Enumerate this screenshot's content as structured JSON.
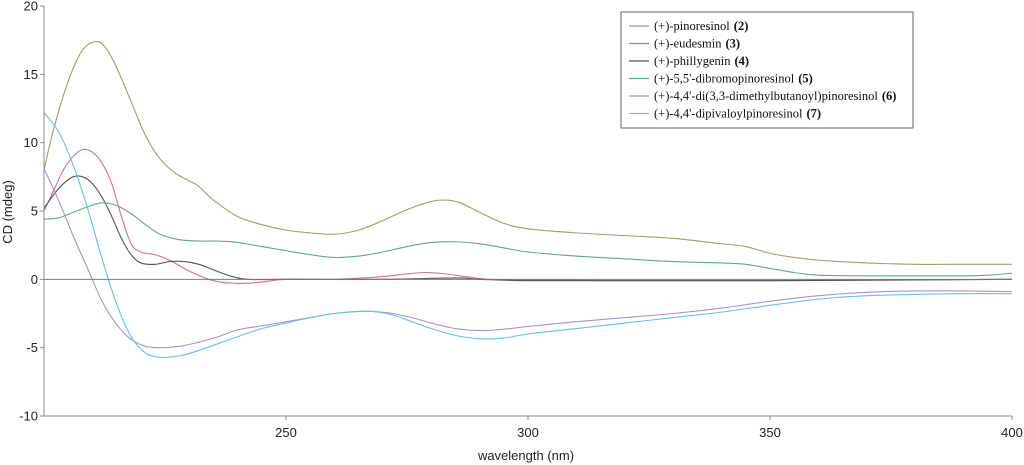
{
  "chart_data": {
    "type": "line",
    "title": "",
    "xlabel": "wavelength (nm)",
    "ylabel": "CD (mdeg)",
    "xlim": [
      200,
      400
    ],
    "ylim": [
      -10,
      20
    ],
    "xticks": [
      250,
      300,
      350,
      400
    ],
    "yticks": [
      20,
      15,
      10,
      5,
      0,
      -5,
      -10
    ],
    "legend_position": "top-right",
    "grid": false,
    "zero_line": true,
    "series": [
      {
        "name": "(+)-pinoresinol",
        "label_number": "(2)",
        "color": "#a4a060",
        "points": [
          [
            200,
            8
          ],
          [
            202,
            11
          ],
          [
            205,
            14.5
          ],
          [
            208,
            16.8
          ],
          [
            211,
            17.4
          ],
          [
            213,
            16.8
          ],
          [
            215,
            15.5
          ],
          [
            218,
            13
          ],
          [
            221,
            10.5
          ],
          [
            224,
            8.8
          ],
          [
            227,
            7.8
          ],
          [
            230,
            7.2
          ],
          [
            232,
            6.8
          ],
          [
            235,
            5.8
          ],
          [
            240,
            4.6
          ],
          [
            245,
            4.0
          ],
          [
            250,
            3.6
          ],
          [
            255,
            3.4
          ],
          [
            260,
            3.3
          ],
          [
            265,
            3.6
          ],
          [
            270,
            4.3
          ],
          [
            275,
            5.1
          ],
          [
            280,
            5.7
          ],
          [
            283,
            5.8
          ],
          [
            286,
            5.6
          ],
          [
            290,
            4.9
          ],
          [
            295,
            4.1
          ],
          [
            300,
            3.7
          ],
          [
            310,
            3.4
          ],
          [
            320,
            3.2
          ],
          [
            330,
            3.0
          ],
          [
            340,
            2.6
          ],
          [
            345,
            2.4
          ],
          [
            350,
            1.9
          ],
          [
            355,
            1.6
          ],
          [
            360,
            1.4
          ],
          [
            370,
            1.2
          ],
          [
            380,
            1.1
          ],
          [
            390,
            1.1
          ],
          [
            400,
            1.1
          ]
        ]
      },
      {
        "name": "(+)-eudesmin",
        "label_number": "(3)",
        "color": "#d87080",
        "points": [
          [
            200,
            5.0
          ],
          [
            202,
            6.5
          ],
          [
            204,
            8.0
          ],
          [
            206,
            9.0
          ],
          [
            208,
            9.5
          ],
          [
            210,
            9.3
          ],
          [
            212,
            8.5
          ],
          [
            214,
            7.0
          ],
          [
            216,
            4.6
          ],
          [
            218,
            2.6
          ],
          [
            220,
            2.0
          ],
          [
            223,
            1.8
          ],
          [
            226,
            1.4
          ],
          [
            230,
            0.6
          ],
          [
            235,
            -0.1
          ],
          [
            240,
            -0.3
          ],
          [
            245,
            -0.2
          ],
          [
            250,
            0.0
          ],
          [
            260,
            0.0
          ],
          [
            270,
            0.2
          ],
          [
            275,
            0.4
          ],
          [
            279,
            0.5
          ],
          [
            283,
            0.4
          ],
          [
            287,
            0.2
          ],
          [
            292,
            0.0
          ],
          [
            300,
            -0.05
          ],
          [
            320,
            -0.1
          ],
          [
            350,
            -0.1
          ],
          [
            400,
            0.0
          ]
        ]
      },
      {
        "name": "(+)-phillygenin",
        "label_number": "(4)",
        "color": "#555555",
        "points": [
          [
            200,
            5.2
          ],
          [
            202,
            6.2
          ],
          [
            204,
            7.0
          ],
          [
            206,
            7.5
          ],
          [
            208,
            7.5
          ],
          [
            210,
            7.0
          ],
          [
            212,
            6.0
          ],
          [
            214,
            4.6
          ],
          [
            216,
            3.0
          ],
          [
            218,
            1.8
          ],
          [
            220,
            1.2
          ],
          [
            223,
            1.1
          ],
          [
            226,
            1.3
          ],
          [
            229,
            1.3
          ],
          [
            232,
            1.1
          ],
          [
            235,
            0.7
          ],
          [
            238,
            0.3
          ],
          [
            242,
            0.0
          ],
          [
            250,
            0.0
          ],
          [
            270,
            0.0
          ],
          [
            285,
            0.1
          ],
          [
            290,
            0.0
          ],
          [
            300,
            -0.1
          ],
          [
            320,
            -0.1
          ],
          [
            350,
            -0.1
          ],
          [
            400,
            0.0
          ]
        ]
      },
      {
        "name": "(+)-5,5'-dibromopinoresinol",
        "label_number": "(5)",
        "color": "#5aa890",
        "points": [
          [
            200,
            4.4
          ],
          [
            203,
            4.5
          ],
          [
            206,
            4.9
          ],
          [
            209,
            5.3
          ],
          [
            212,
            5.6
          ],
          [
            215,
            5.4
          ],
          [
            218,
            4.8
          ],
          [
            221,
            4.0
          ],
          [
            224,
            3.3
          ],
          [
            228,
            2.9
          ],
          [
            232,
            2.8
          ],
          [
            236,
            2.8
          ],
          [
            240,
            2.7
          ],
          [
            245,
            2.4
          ],
          [
            250,
            2.1
          ],
          [
            255,
            1.8
          ],
          [
            260,
            1.6
          ],
          [
            265,
            1.7
          ],
          [
            270,
            2.0
          ],
          [
            275,
            2.4
          ],
          [
            280,
            2.7
          ],
          [
            285,
            2.75
          ],
          [
            290,
            2.6
          ],
          [
            295,
            2.3
          ],
          [
            300,
            2.0
          ],
          [
            310,
            1.7
          ],
          [
            320,
            1.5
          ],
          [
            330,
            1.3
          ],
          [
            340,
            1.2
          ],
          [
            345,
            1.1
          ],
          [
            350,
            0.8
          ],
          [
            355,
            0.5
          ],
          [
            360,
            0.3
          ],
          [
            370,
            0.25
          ],
          [
            380,
            0.25
          ],
          [
            390,
            0.25
          ],
          [
            395,
            0.3
          ],
          [
            400,
            0.45
          ]
        ]
      },
      {
        "name": "(+)-4,4'-di(3,3-dimethylbutanoyl)pinoresinol",
        "label_number": "(6)",
        "color": "#a890d8",
        "points": [
          [
            200,
            8.1
          ],
          [
            203,
            5.8
          ],
          [
            206,
            3.2
          ],
          [
            209,
            0.8
          ],
          [
            212,
            -1.6
          ],
          [
            215,
            -3.3
          ],
          [
            218,
            -4.4
          ],
          [
            221,
            -4.9
          ],
          [
            224,
            -5.0
          ],
          [
            228,
            -4.9
          ],
          [
            232,
            -4.6
          ],
          [
            236,
            -4.2
          ],
          [
            240,
            -3.7
          ],
          [
            245,
            -3.4
          ],
          [
            250,
            -3.1
          ],
          [
            255,
            -2.8
          ],
          [
            260,
            -2.5
          ],
          [
            265,
            -2.35
          ],
          [
            268,
            -2.35
          ],
          [
            272,
            -2.5
          ],
          [
            276,
            -2.8
          ],
          [
            280,
            -3.2
          ],
          [
            285,
            -3.6
          ],
          [
            290,
            -3.75
          ],
          [
            295,
            -3.65
          ],
          [
            300,
            -3.45
          ],
          [
            310,
            -3.1
          ],
          [
            320,
            -2.8
          ],
          [
            330,
            -2.5
          ],
          [
            340,
            -2.1
          ],
          [
            350,
            -1.6
          ],
          [
            360,
            -1.2
          ],
          [
            370,
            -0.95
          ],
          [
            380,
            -0.85
          ],
          [
            390,
            -0.85
          ],
          [
            400,
            -0.9
          ]
        ]
      },
      {
        "name": "(+)-4,4'-dipivaloylpinoresinol",
        "label_number": "(7)",
        "color": "#60c0f0",
        "points": [
          [
            200,
            12.2
          ],
          [
            203,
            10.8
          ],
          [
            206,
            8.4
          ],
          [
            209,
            5.2
          ],
          [
            212,
            1.5
          ],
          [
            215,
            -1.8
          ],
          [
            218,
            -4.2
          ],
          [
            221,
            -5.4
          ],
          [
            224,
            -5.7
          ],
          [
            228,
            -5.6
          ],
          [
            232,
            -5.2
          ],
          [
            236,
            -4.7
          ],
          [
            240,
            -4.2
          ],
          [
            245,
            -3.6
          ],
          [
            250,
            -3.2
          ],
          [
            255,
            -2.8
          ],
          [
            260,
            -2.5
          ],
          [
            265,
            -2.35
          ],
          [
            268,
            -2.35
          ],
          [
            272,
            -2.6
          ],
          [
            276,
            -3.1
          ],
          [
            280,
            -3.6
          ],
          [
            285,
            -4.1
          ],
          [
            290,
            -4.35
          ],
          [
            295,
            -4.3
          ],
          [
            300,
            -4.0
          ],
          [
            310,
            -3.6
          ],
          [
            320,
            -3.2
          ],
          [
            330,
            -2.8
          ],
          [
            340,
            -2.4
          ],
          [
            350,
            -1.9
          ],
          [
            360,
            -1.45
          ],
          [
            370,
            -1.2
          ],
          [
            380,
            -1.1
          ],
          [
            390,
            -1.05
          ],
          [
            400,
            -1.05
          ]
        ]
      }
    ]
  }
}
